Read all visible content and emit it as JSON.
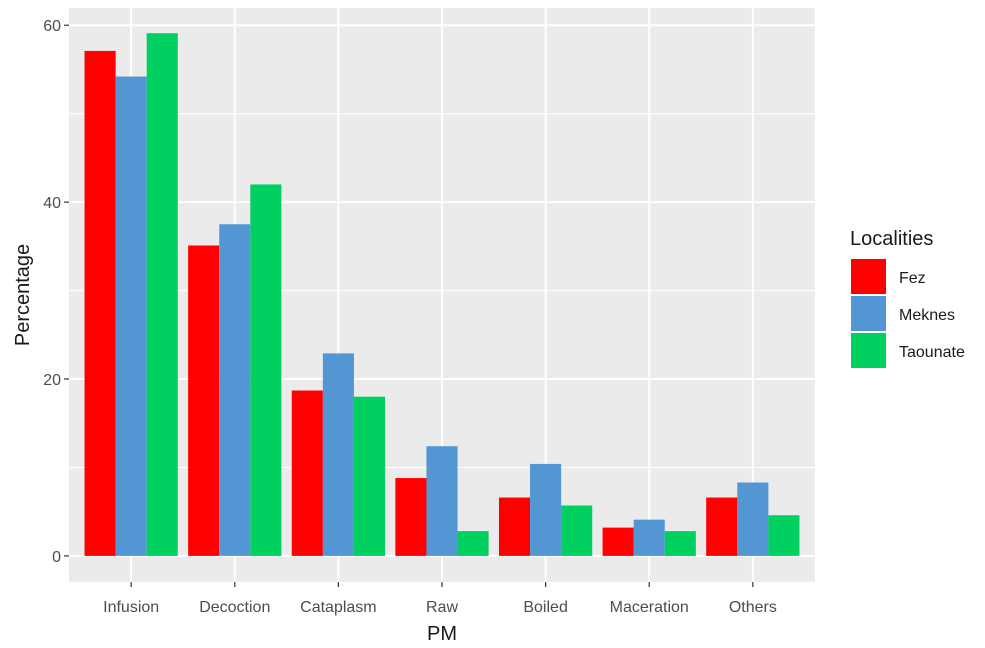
{
  "chart_data": {
    "type": "bar",
    "xlabel": "PM",
    "ylabel": "Percentage",
    "categories": [
      "Infusion",
      "Decoction",
      "Cataplasm",
      "Raw",
      "Boiled",
      "Maceration",
      "Others"
    ],
    "series": [
      {
        "name": "Fez",
        "color": "#ff0000",
        "values": [
          57.1,
          35.1,
          18.7,
          8.8,
          6.6,
          3.2,
          6.6
        ]
      },
      {
        "name": "Meknes",
        "color": "#5297d4",
        "values": [
          54.2,
          37.5,
          22.9,
          12.4,
          10.4,
          4.1,
          8.3
        ]
      },
      {
        "name": "Taounate",
        "color": "#00d060",
        "values": [
          59.1,
          42.0,
          18.0,
          2.8,
          5.7,
          2.8,
          4.6
        ]
      }
    ],
    "ylim": [
      -2.95,
      61.95
    ],
    "yticks": [
      0,
      20,
      40,
      60
    ],
    "grid": true,
    "legend": {
      "title": "Localities",
      "position": "right"
    }
  }
}
